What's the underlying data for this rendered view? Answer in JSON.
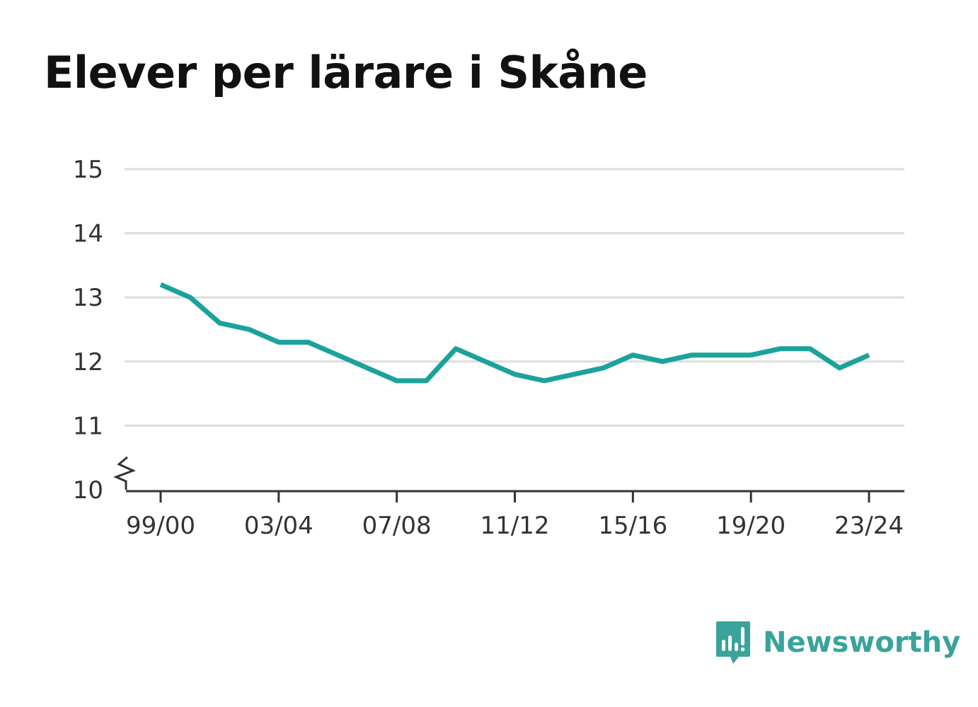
{
  "colors": {
    "line": "#1ba39b",
    "grid": "#dddddd",
    "axis": "#333333",
    "brand": "#3aa39b"
  },
  "brand": {
    "name": "Newsworthy",
    "icon": "newsworthy-logo-icon"
  },
  "chart_data": {
    "type": "line",
    "title": "Elever per lärare i Skåne",
    "xlabel": "",
    "ylabel": "",
    "ylim": [
      10,
      15
    ],
    "y_axis_break": true,
    "grid": true,
    "y_ticks": [
      "10",
      "11",
      "12",
      "13",
      "14",
      "15"
    ],
    "x_tick_labels": [
      "99/00",
      "03/04",
      "07/08",
      "11/12",
      "15/16",
      "19/20",
      "23/24"
    ],
    "x": [
      "99/00",
      "00/01",
      "01/02",
      "02/03",
      "03/04",
      "04/05",
      "05/06",
      "06/07",
      "07/08",
      "08/09",
      "09/10",
      "10/11",
      "11/12",
      "12/13",
      "13/14",
      "14/15",
      "15/16",
      "16/17",
      "17/18",
      "18/19",
      "19/20",
      "20/21",
      "21/22",
      "22/23",
      "23/24"
    ],
    "series": [
      {
        "values": [
          13.2,
          13.0,
          12.6,
          12.5,
          12.3,
          12.3,
          12.1,
          11.9,
          11.7,
          11.7,
          12.2,
          12.0,
          11.8,
          11.7,
          11.8,
          11.9,
          12.1,
          12.0,
          12.1,
          12.1,
          12.1,
          12.2,
          12.2,
          11.9,
          12.1
        ]
      }
    ]
  }
}
